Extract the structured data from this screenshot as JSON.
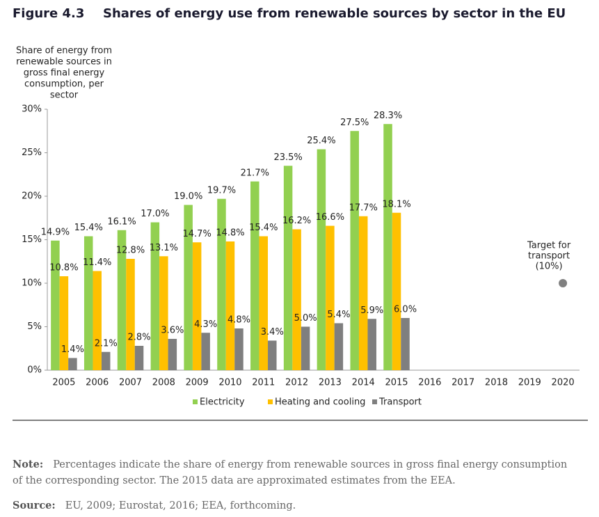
{
  "figure_label": "Figure 4.3",
  "chart_data": {
    "type": "bar",
    "title": "Shares of energy use from renewable sources by sector in the EU",
    "ylabel": [
      "Share of energy from",
      "renewable sources in",
      "gross final energy",
      "consumption, per",
      "sector"
    ],
    "categories": [
      "2005",
      "2006",
      "2007",
      "2008",
      "2009",
      "2010",
      "2011",
      "2012",
      "2013",
      "2014",
      "2015",
      "2016",
      "2017",
      "2018",
      "2019",
      "2020"
    ],
    "series": [
      {
        "name": "Electricity",
        "color": "#92d050",
        "values": [
          14.9,
          15.4,
          16.1,
          17.0,
          19.0,
          19.7,
          21.7,
          23.5,
          25.4,
          27.5,
          28.3,
          null,
          null,
          null,
          null,
          null
        ],
        "value_labels": [
          "14.9%",
          "15.4%",
          "16.1%",
          "17.0%",
          "19.0%",
          "19.7%",
          "21.7%",
          "23.5%",
          "25.4%",
          "27.5%",
          "28.3%",
          null,
          null,
          null,
          null,
          null
        ]
      },
      {
        "name": "Heating and cooling",
        "color": "#ffc000",
        "values": [
          10.8,
          11.4,
          12.8,
          13.1,
          14.7,
          14.8,
          15.4,
          16.2,
          16.6,
          17.7,
          18.1,
          null,
          null,
          null,
          null,
          null
        ],
        "value_labels": [
          "10.8%",
          "11.4%",
          "12.8%",
          "13.1%",
          "14.7%",
          "14.8%",
          "15.4%",
          "16.2%",
          "16.6%",
          "17.7%",
          "18.1%",
          null,
          null,
          null,
          null,
          null
        ]
      },
      {
        "name": "Transport",
        "color": "#7f7f7f",
        "values": [
          1.4,
          2.1,
          2.8,
          3.6,
          4.3,
          4.8,
          3.4,
          5.0,
          5.4,
          5.9,
          6.0,
          null,
          null,
          null,
          null,
          null
        ],
        "value_labels": [
          "1.4%",
          "2.1%",
          "2.8%",
          "3.6%",
          "4.3%",
          "4.8%",
          "3.4%",
          "5.0%",
          "5.4%",
          "5.9%",
          "6.0%",
          null,
          null,
          null,
          null,
          null
        ]
      }
    ],
    "target": {
      "label": [
        "Target for",
        "transport",
        "(10%)"
      ],
      "category": "2020",
      "value": 10,
      "color": "#808080"
    },
    "ylim": [
      0,
      30
    ],
    "yticks": [
      {
        "value": 0,
        "label": "0%"
      },
      {
        "value": 5,
        "label": "5%"
      },
      {
        "value": 10,
        "label": "10%"
      },
      {
        "value": 15,
        "label": "15%"
      },
      {
        "value": 20,
        "label": "20%"
      },
      {
        "value": 25,
        "label": "25%"
      },
      {
        "value": 30,
        "label": "30%"
      }
    ],
    "legend": "bottom"
  },
  "note": {
    "label": "Note:",
    "text": "Percentages indicate the share of energy from renewable sources in gross final energy consumption of the corresponding sector. The 2015 data are approximated estimates from the EEA."
  },
  "source": {
    "label": "Source:",
    "text": "EU, 2009; Eurostat, 2016; EEA, forthcoming."
  }
}
